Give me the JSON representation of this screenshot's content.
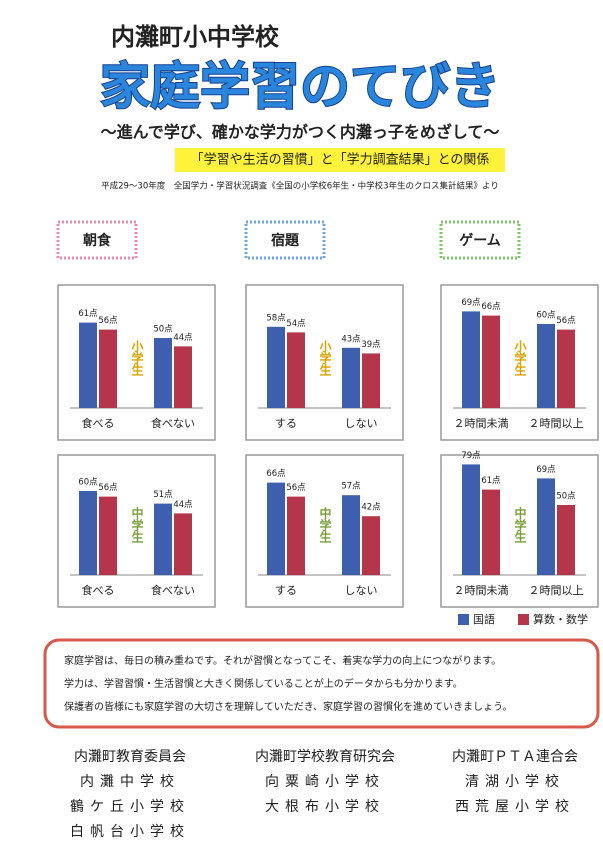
{
  "header": {
    "school": "内灘町小中学校",
    "title": "家庭学習のてびき",
    "subtitle": "～進んで学び、確かな学力がつく内灘っ子をめざして～",
    "banner": "「学習や生活の習慣」と「学力調査結果」との関係",
    "source": "平成29～30年度　全国学力・学習状況調査《全国の小学校6年生・中学校3年生のクロス集計結果》より"
  },
  "sections": [
    "朝食",
    "宿題",
    "ゲーム"
  ],
  "chart_data": [
    {
      "type": "bar",
      "group_label": "小学生",
      "categories": [
        "食べる",
        "食べない"
      ],
      "series": [
        {
          "name": "国語",
          "color": "#3d5fae",
          "values": [
            61,
            50
          ],
          "value_labels": [
            "61点",
            "50点"
          ]
        },
        {
          "name": "算数・数学",
          "color": "#b5364a",
          "values": [
            56,
            44
          ],
          "value_labels": [
            "56点",
            "44点"
          ]
        }
      ]
    },
    {
      "type": "bar",
      "group_label": "小学生",
      "categories": [
        "する",
        "しない"
      ],
      "series": [
        {
          "name": "国語",
          "color": "#3d5fae",
          "values": [
            58,
            43
          ],
          "value_labels": [
            "58点",
            "43点"
          ]
        },
        {
          "name": "算数・数学",
          "color": "#b5364a",
          "values": [
            54,
            39
          ],
          "value_labels": [
            "54点",
            "39点"
          ]
        }
      ]
    },
    {
      "type": "bar",
      "group_label": "小学生",
      "categories": [
        "２時間未満",
        "２時間以上"
      ],
      "series": [
        {
          "name": "国語",
          "color": "#3d5fae",
          "values": [
            69,
            60
          ],
          "value_labels": [
            "69点",
            "60点"
          ]
        },
        {
          "name": "算数・数学",
          "color": "#b5364a",
          "values": [
            66,
            56
          ],
          "value_labels": [
            "66点",
            "56点"
          ]
        }
      ]
    },
    {
      "type": "bar",
      "group_label": "中学生",
      "categories": [
        "食べる",
        "食べない"
      ],
      "series": [
        {
          "name": "国語",
          "color": "#3d5fae",
          "values": [
            60,
            51
          ],
          "value_labels": [
            "60点",
            "51点"
          ]
        },
        {
          "name": "算数・数学",
          "color": "#b5364a",
          "values": [
            56,
            44
          ],
          "value_labels": [
            "56点",
            "44点"
          ]
        }
      ]
    },
    {
      "type": "bar",
      "group_label": "中学生",
      "categories": [
        "する",
        "しない"
      ],
      "series": [
        {
          "name": "国語",
          "color": "#3d5fae",
          "values": [
            66,
            57
          ],
          "value_labels": [
            "66点",
            "57点"
          ]
        },
        {
          "name": "算数・数学",
          "color": "#b5364a",
          "values": [
            56,
            42
          ],
          "value_labels": [
            "56点",
            "42点"
          ]
        }
      ]
    },
    {
      "type": "bar",
      "group_label": "中学生",
      "categories": [
        "２時間未満",
        "２時間以上"
      ],
      "series": [
        {
          "name": "国語",
          "color": "#3d5fae",
          "values": [
            79,
            69
          ],
          "value_labels": [
            "79点",
            "69点"
          ]
        },
        {
          "name": "算数・数学",
          "color": "#b5364a",
          "values": [
            61,
            50
          ],
          "value_labels": [
            "61点",
            "50点"
          ]
        }
      ]
    }
  ],
  "note": [
    "家庭学習は、毎日の積み重ねです。それが習慣となってこそ、着実な学力の向上につながります。",
    "学力は、学習習慣・生活習慣と大きく関係していることが上のデータからも分かります。",
    "保護者の皆様にも家庭学習の大切さを理解していただき、家庭学習の習慣化を進めていきましょう。"
  ],
  "organizations": [
    [
      "内灘町教育委員会",
      "内灘中学校",
      "鶴ケ丘小学校",
      "白帆台小学校"
    ],
    [
      "内灘町学校教育研究会",
      "向粟崎小学校",
      "大根布小学校"
    ],
    [
      "内灘町ＰＴＡ連合会",
      "清湖小学校",
      "西荒屋小学校"
    ]
  ]
}
